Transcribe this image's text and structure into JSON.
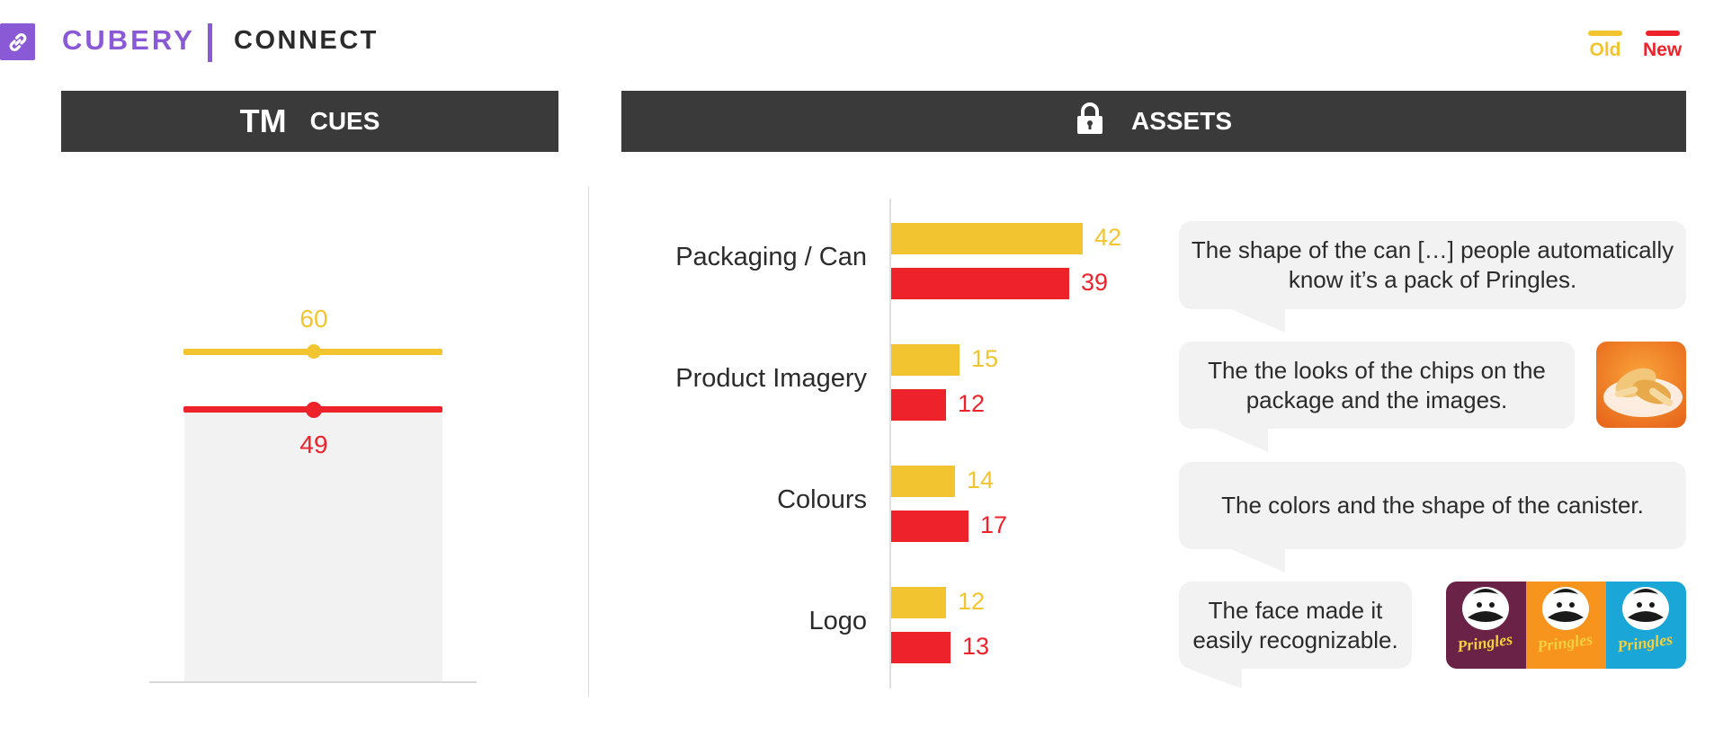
{
  "header": {
    "brand": "CUBERY",
    "product": "CONNECT",
    "logo_icon": "link-icon"
  },
  "legend": {
    "old_label": "Old",
    "new_label": "New",
    "old_color": "#f2c530",
    "new_color": "#ee222b"
  },
  "cues_panel": {
    "badge": "TM",
    "title": "CUES"
  },
  "assets_panel": {
    "icon": "lock-icon",
    "title": "ASSETS"
  },
  "chart_data": [
    {
      "type": "dot",
      "title": "TM CUES",
      "series": [
        {
          "name": "Old",
          "values": [
            60
          ]
        },
        {
          "name": "New",
          "values": [
            49
          ]
        }
      ]
    },
    {
      "type": "bar",
      "orientation": "horizontal",
      "title": "ASSETS",
      "categories": [
        "Packaging / Can",
        "Product Imagery",
        "Colours",
        "Logo"
      ],
      "series": [
        {
          "name": "Old",
          "values": [
            42,
            15,
            14,
            12
          ]
        },
        {
          "name": "New",
          "values": [
            39,
            12,
            17,
            13
          ]
        }
      ]
    }
  ],
  "quotes": [
    {
      "text": "The shape of the can […] people automatically know it’s a pack of Pringles."
    },
    {
      "text": "The the looks of the chips on the package and the images."
    },
    {
      "text": "The colors and the shape of the canister."
    },
    {
      "text": "The face made it easily recognizable."
    }
  ],
  "pack_labels": [
    "Pringles",
    "Pringles",
    "Pringles"
  ]
}
